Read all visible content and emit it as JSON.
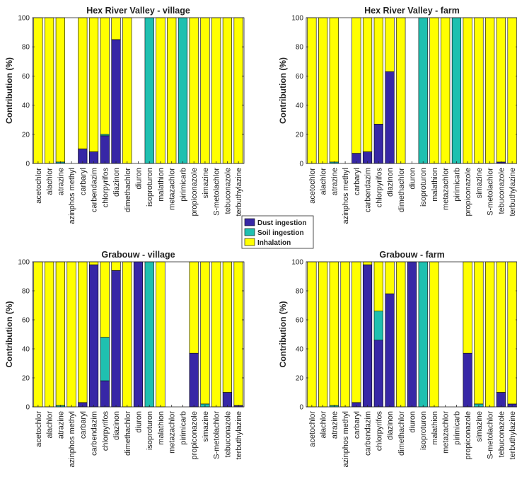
{
  "colors": {
    "dust": "#3727a6",
    "soil": "#1fc0b0",
    "inhalation": "#ffff00",
    "edge": "#000000"
  },
  "legend": {
    "items": [
      {
        "key": "dust",
        "label": "Dust ingestion",
        "color": "#3727a6"
      },
      {
        "key": "soil",
        "label": "Soil ingestion",
        "color": "#1fc0b0"
      },
      {
        "key": "inhalation",
        "label": "Inhalation",
        "color": "#ffff00"
      }
    ]
  },
  "chart_data": [
    {
      "type": "bar",
      "stacked": true,
      "title": "Hex River Valley - village",
      "ylabel": "Contribution (%)",
      "ylim": [
        0,
        100
      ],
      "yticks": [
        0,
        20,
        40,
        60,
        80,
        100
      ],
      "categories": [
        "acetochlor",
        "alachlor",
        "atrazine",
        "azinphos methyl",
        "carbaryl",
        "carbendazim",
        "chlorpyrifos",
        "diazinon",
        "dimethachlor",
        "diuron",
        "isoproturon",
        "malathion",
        "metazachlor",
        "pirimicarb",
        "propiconazole",
        "simazine",
        "S-metolachlor",
        "tebuconazole",
        "terbuthylazine"
      ],
      "series": [
        {
          "name": "Dust ingestion",
          "values": [
            0,
            0,
            0,
            0,
            10,
            8,
            19,
            85,
            0,
            0,
            0,
            0,
            0,
            0,
            0,
            0,
            0,
            0,
            0
          ]
        },
        {
          "name": "Soil ingestion",
          "values": [
            0,
            0,
            1,
            0,
            0,
            0,
            1,
            0,
            0,
            0,
            100,
            0,
            0,
            100,
            0,
            0,
            0,
            0,
            0
          ]
        },
        {
          "name": "Inhalation",
          "values": [
            100,
            100,
            99,
            0,
            90,
            92,
            80,
            15,
            100,
            0,
            0,
            100,
            100,
            0,
            100,
            100,
            100,
            100,
            100
          ]
        }
      ]
    },
    {
      "type": "bar",
      "stacked": true,
      "title": "Hex River Valley - farm",
      "ylabel": "Contribution (%)",
      "ylim": [
        0,
        100
      ],
      "yticks": [
        0,
        20,
        40,
        60,
        80,
        100
      ],
      "categories": [
        "acetochlor",
        "alachlor",
        "atrazine",
        "azinphos methyl",
        "carbaryl",
        "carbendazim",
        "chlorpyrifos",
        "diazinon",
        "dimethachlor",
        "diuron",
        "isoproturon",
        "malathion",
        "metazachlor",
        "pirimicarb",
        "propiconazole",
        "simazine",
        "S-metolachlor",
        "tebuconazole",
        "terbuthylazine"
      ],
      "series": [
        {
          "name": "Dust ingestion",
          "values": [
            0,
            0,
            0,
            0,
            7,
            8,
            27,
            63,
            0,
            0,
            0,
            0,
            0,
            0,
            0,
            0,
            0,
            1,
            0
          ]
        },
        {
          "name": "Soil ingestion",
          "values": [
            0,
            0,
            1,
            0,
            0,
            0,
            0,
            0,
            0,
            0,
            100,
            0,
            0,
            100,
            0,
            0,
            0,
            0,
            0
          ]
        },
        {
          "name": "Inhalation",
          "values": [
            100,
            100,
            99,
            0,
            93,
            92,
            73,
            37,
            100,
            0,
            0,
            100,
            100,
            0,
            100,
            100,
            100,
            99,
            100
          ]
        }
      ]
    },
    {
      "type": "bar",
      "stacked": true,
      "title": "Grabouw - village",
      "ylabel": "Contribution (%)",
      "ylim": [
        0,
        100
      ],
      "yticks": [
        0,
        20,
        40,
        60,
        80,
        100
      ],
      "categories": [
        "acetochlor",
        "alachlor",
        "atrazine",
        "azinphos methyl",
        "carbaryl",
        "carbendazim",
        "chlorpyrifos",
        "diazinon",
        "dimethachlor",
        "diuron",
        "isoproturon",
        "malathion",
        "metazachlor",
        "pirimicarb",
        "propiconazole",
        "simazine",
        "S-metolachlor",
        "tebuconazole",
        "terbuthylazine"
      ],
      "series": [
        {
          "name": "Dust ingestion",
          "values": [
            0,
            0,
            0,
            0,
            3,
            98,
            18,
            94,
            0,
            100,
            0,
            0,
            0,
            0,
            37,
            0,
            0,
            10,
            1
          ]
        },
        {
          "name": "Soil ingestion",
          "values": [
            0,
            0,
            1,
            0,
            0,
            0,
            30,
            0,
            0,
            0,
            100,
            0,
            0,
            0,
            0,
            2,
            0,
            0,
            0
          ]
        },
        {
          "name": "Inhalation",
          "values": [
            100,
            100,
            99,
            100,
            97,
            2,
            52,
            6,
            100,
            0,
            0,
            100,
            0,
            0,
            63,
            98,
            100,
            90,
            99
          ]
        }
      ]
    },
    {
      "type": "bar",
      "stacked": true,
      "title": "Grabouw - farm",
      "ylabel": "Contribution (%)",
      "ylim": [
        0,
        100
      ],
      "yticks": [
        0,
        20,
        40,
        60,
        80,
        100
      ],
      "categories": [
        "acetochlor",
        "alachlor",
        "atrazine",
        "azinphos methyl",
        "carbaryl",
        "carbendazim",
        "chlorpyrifos",
        "diazinon",
        "dimethachlor",
        "diuron",
        "isoproturon",
        "malathion",
        "metazachlor",
        "pirimicarb",
        "propiconazole",
        "simazine",
        "S-metolachlor",
        "tebuconazole",
        "terbuthylazine"
      ],
      "series": [
        {
          "name": "Dust ingestion",
          "values": [
            0,
            0,
            0,
            0,
            3,
            98,
            46,
            78,
            0,
            100,
            0,
            0,
            0,
            0,
            37,
            0,
            0,
            10,
            2
          ]
        },
        {
          "name": "Soil ingestion",
          "values": [
            0,
            0,
            1,
            0,
            0,
            0,
            20,
            0,
            0,
            0,
            100,
            0,
            0,
            0,
            0,
            2,
            0,
            0,
            0
          ]
        },
        {
          "name": "Inhalation",
          "values": [
            100,
            100,
            99,
            100,
            97,
            2,
            34,
            22,
            100,
            0,
            0,
            100,
            0,
            0,
            63,
            98,
            100,
            90,
            98
          ]
        }
      ]
    }
  ]
}
